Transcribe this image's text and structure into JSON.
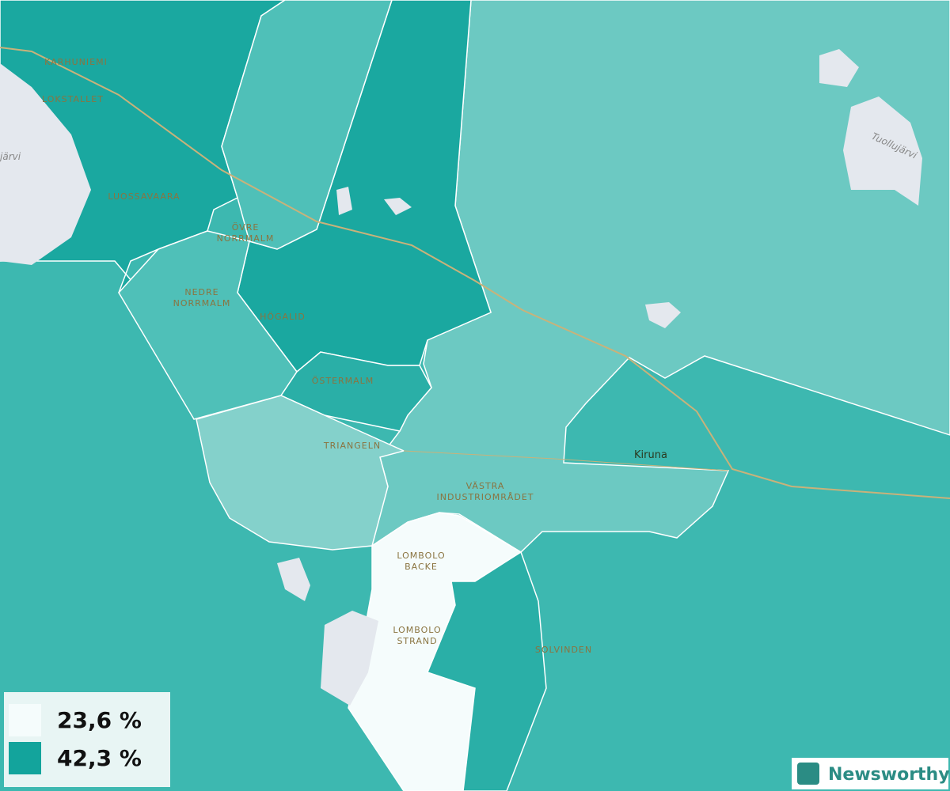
{
  "places": [
    [
      "KARHUNIEMI"
    ],
    [
      "LOKSTALLET"
    ],
    [
      "LUOSSAVAARA"
    ],
    [
      "ÖVRE",
      "NORRMALM"
    ],
    [
      "NEDRE",
      "NORRMALM"
    ],
    [
      "HÖGALID"
    ],
    [
      "ÖSTERMALM"
    ],
    [
      "TRIANGELN"
    ],
    [
      "VÄSTRA",
      "INDUSTRIOMRÅDET"
    ],
    [
      "LOMBOLO",
      "BACKE"
    ],
    [
      "LOMBOLO",
      "STRAND"
    ],
    [
      "SOLVINDEN"
    ]
  ],
  "town": "Kiruna",
  "lakes": [
    "Tuollujärvi",
    "järvi"
  ],
  "legend": [
    "23,6 %",
    "42,3 %"
  ],
  "brand": "Newsworthy"
}
